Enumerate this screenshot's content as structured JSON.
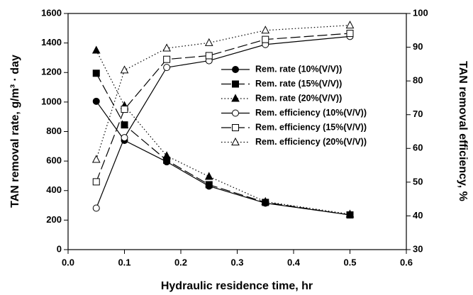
{
  "chart_data": {
    "type": "line",
    "xlabel": "Hydraulic residence time, hr",
    "ylabel": "TAN removal rate, g/m³ · day",
    "y2label": "TAN removal efficiency, %",
    "x": [
      0.05,
      0.1,
      0.175,
      0.25,
      0.35,
      0.5
    ],
    "xlim": [
      0,
      0.6
    ],
    "xticks": [
      {
        "value": 0,
        "label": "0.0"
      },
      0.1,
      0.2,
      0.3,
      0.4,
      0.5,
      0.6
    ],
    "ylim": [
      0,
      1600
    ],
    "yticks": [
      0,
      200,
      400,
      600,
      800,
      1000,
      1200,
      1400,
      1600
    ],
    "y2lim": [
      30,
      100
    ],
    "y2ticks": [
      30,
      40,
      50,
      60,
      70,
      80,
      90,
      100
    ],
    "grid": false,
    "legend": "right",
    "series": [
      {
        "name": "Rem. rate (10%(V/V))",
        "color": "#000000",
        "marker": "circle",
        "filled": true,
        "dash": "solid",
        "values": [
          1005,
          740,
          595,
          430,
          315,
          235
        ]
      },
      {
        "name": "Rem. rate (15%(V/V))",
        "color": "#000000",
        "marker": "square",
        "filled": true,
        "dash": "dashed",
        "values": [
          1195,
          845,
          605,
          440,
          320,
          235
        ]
      },
      {
        "name": "Rem. rate (20%(V/V))",
        "color": "#000000",
        "marker": "triangle",
        "filled": true,
        "dash": "dotted",
        "values": [
          1350,
          975,
          635,
          495,
          325,
          240
        ]
      },
      {
        "name": "Rem. efficiency (10%(V/V))",
        "color": "#000000",
        "marker": "circle",
        "filled": false,
        "dash": "solid",
        "axis": "y2",
        "values": [
          42.3,
          63.2,
          84.0,
          86.0,
          90.8,
          93.2
        ]
      },
      {
        "name": "Rem. efficiency (15%(V/V))",
        "color": "#000000",
        "marker": "square",
        "filled": false,
        "dash": "dashed",
        "axis": "y2",
        "values": [
          50.1,
          71.6,
          86.4,
          87.5,
          92.3,
          94.1
        ]
      },
      {
        "name": "Rem. efficiency (20%(V/V))",
        "color": "#000000",
        "marker": "triangle",
        "filled": false,
        "dash": "dotted",
        "axis": "y2",
        "values": [
          56.7,
          83.2,
          89.7,
          91.3,
          95.0,
          96.5
        ]
      }
    ]
  }
}
